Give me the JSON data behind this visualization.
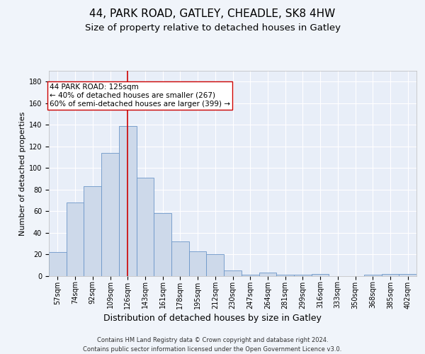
{
  "title1": "44, PARK ROAD, GATLEY, CHEADLE, SK8 4HW",
  "title2": "Size of property relative to detached houses in Gatley",
  "xlabel": "Distribution of detached houses by size in Gatley",
  "ylabel": "Number of detached properties",
  "footer1": "Contains HM Land Registry data © Crown copyright and database right 2024.",
  "footer2": "Contains public sector information licensed under the Open Government Licence v3.0.",
  "bar_color": "#cdd9ea",
  "bar_edge_color": "#6b96c8",
  "categories": [
    "57sqm",
    "74sqm",
    "92sqm",
    "109sqm",
    "126sqm",
    "143sqm",
    "161sqm",
    "178sqm",
    "195sqm",
    "212sqm",
    "230sqm",
    "247sqm",
    "264sqm",
    "281sqm",
    "299sqm",
    "316sqm",
    "333sqm",
    "350sqm",
    "368sqm",
    "385sqm",
    "402sqm"
  ],
  "values": [
    22,
    68,
    83,
    114,
    139,
    91,
    58,
    32,
    23,
    20,
    5,
    1,
    3,
    1,
    1,
    2,
    0,
    0,
    1,
    2,
    2
  ],
  "vline_index": 4,
  "vline_color": "#cc0000",
  "annotation_line1": "44 PARK ROAD: 125sqm",
  "annotation_line2": "← 40% of detached houses are smaller (267)",
  "annotation_line3": "60% of semi-detached houses are larger (399) →",
  "annotation_box_facecolor": "#ffffff",
  "annotation_box_edgecolor": "#cc0000",
  "ylim": [
    0,
    190
  ],
  "yticks": [
    0,
    20,
    40,
    60,
    80,
    100,
    120,
    140,
    160,
    180
  ],
  "fig_bg": "#f0f4fa",
  "plot_bg": "#e8eef8",
  "grid_color": "#ffffff",
  "title1_fontsize": 11,
  "title2_fontsize": 9.5,
  "ylabel_fontsize": 8,
  "xlabel_fontsize": 9,
  "tick_fontsize": 7,
  "annotation_fontsize": 7.5,
  "footer_fontsize": 6
}
